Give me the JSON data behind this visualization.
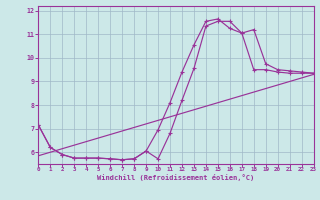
{
  "xlabel": "Windchill (Refroidissement éolien,°C)",
  "bg_color": "#cce8e8",
  "line_color": "#993399",
  "grid_color": "#a0b8c8",
  "xlim": [
    0,
    23
  ],
  "ylim": [
    5.5,
    12.2
  ],
  "yticks": [
    6,
    7,
    8,
    9,
    10,
    11,
    12
  ],
  "xticks": [
    0,
    1,
    2,
    3,
    4,
    5,
    6,
    7,
    8,
    9,
    10,
    11,
    12,
    13,
    14,
    15,
    16,
    17,
    18,
    19,
    20,
    21,
    22,
    23
  ],
  "line1_x": [
    0,
    1,
    2,
    3,
    4,
    5,
    6,
    7,
    8,
    9,
    10,
    11,
    12,
    13,
    14,
    15,
    16,
    17,
    18,
    19,
    20,
    21,
    22,
    23
  ],
  "line1_y": [
    7.15,
    6.2,
    5.9,
    5.75,
    5.75,
    5.75,
    5.72,
    5.68,
    5.72,
    6.05,
    5.72,
    6.8,
    8.2,
    9.55,
    11.35,
    11.55,
    11.55,
    11.05,
    11.2,
    9.75,
    9.5,
    9.45,
    9.4,
    9.35
  ],
  "line2_x": [
    0,
    1,
    2,
    3,
    4,
    5,
    6,
    7,
    8,
    9,
    10,
    11,
    12,
    13,
    14,
    15,
    16,
    17,
    18,
    19,
    20,
    21,
    22,
    23
  ],
  "line2_y": [
    7.15,
    6.2,
    5.9,
    5.75,
    5.75,
    5.75,
    5.72,
    5.68,
    5.72,
    6.05,
    6.95,
    8.1,
    9.4,
    10.55,
    11.55,
    11.65,
    11.25,
    11.05,
    9.5,
    9.5,
    9.4,
    9.35,
    9.35,
    9.35
  ],
  "line3_x": [
    0,
    23
  ],
  "line3_y": [
    5.85,
    9.3
  ]
}
